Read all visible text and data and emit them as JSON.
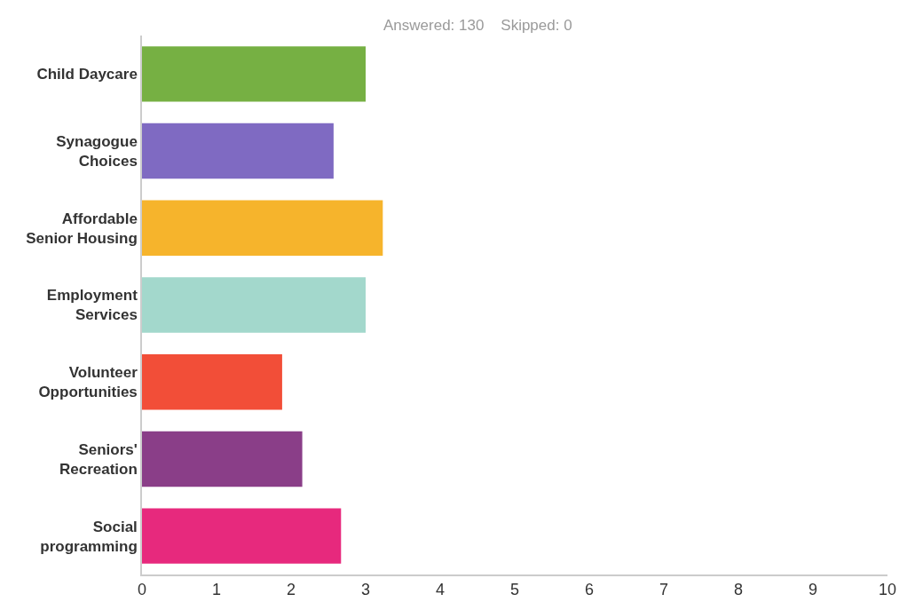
{
  "chart_data": {
    "type": "bar",
    "orientation": "horizontal",
    "subtitle": "Answered: 130    Skipped: 0",
    "categories": [
      "Child Daycare",
      "Synagogue\nChoices",
      "Affordable\nSenior Housing",
      "Employment\nServices",
      "Volunteer\nOpportunities",
      "Seniors'\nRecreation",
      "Social\nprogramming"
    ],
    "values": [
      3.0,
      2.57,
      3.23,
      3.0,
      1.88,
      2.15,
      2.67
    ],
    "colors": [
      "#76b043",
      "#7f6ac2",
      "#f6b42c",
      "#a3d8cc",
      "#f24e38",
      "#8a3e88",
      "#e7297d"
    ],
    "xlim": [
      0,
      10
    ],
    "xticks": [
      0,
      1,
      2,
      3,
      4,
      5,
      6,
      7,
      8,
      9,
      10
    ],
    "grid": false
  }
}
